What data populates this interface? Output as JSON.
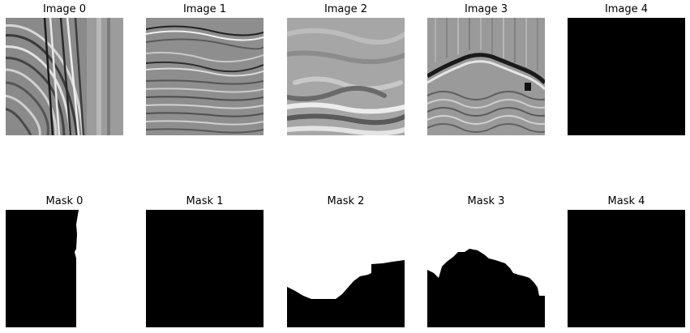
{
  "images": [
    {
      "title": "Image 0",
      "content": "seismic-patch"
    },
    {
      "title": "Image 1",
      "content": "seismic-patch"
    },
    {
      "title": "Image 2",
      "content": "seismic-patch"
    },
    {
      "title": "Image 3",
      "content": "seismic-patch"
    },
    {
      "title": "Image 4",
      "content": "blank-black"
    }
  ],
  "masks": [
    {
      "title": "Mask 0",
      "fill": "#000000",
      "foreground": "#ffffff"
    },
    {
      "title": "Mask 1",
      "fill": "#000000",
      "foreground": "#ffffff"
    },
    {
      "title": "Mask 2",
      "fill": "#000000",
      "foreground": "#ffffff"
    },
    {
      "title": "Mask 3",
      "fill": "#000000",
      "foreground": "#ffffff"
    },
    {
      "title": "Mask 4",
      "fill": "#000000",
      "foreground": "#ffffff"
    }
  ],
  "colors": {
    "background": "#ffffff",
    "mask_salt": "#ffffff",
    "mask_background": "#000000"
  }
}
